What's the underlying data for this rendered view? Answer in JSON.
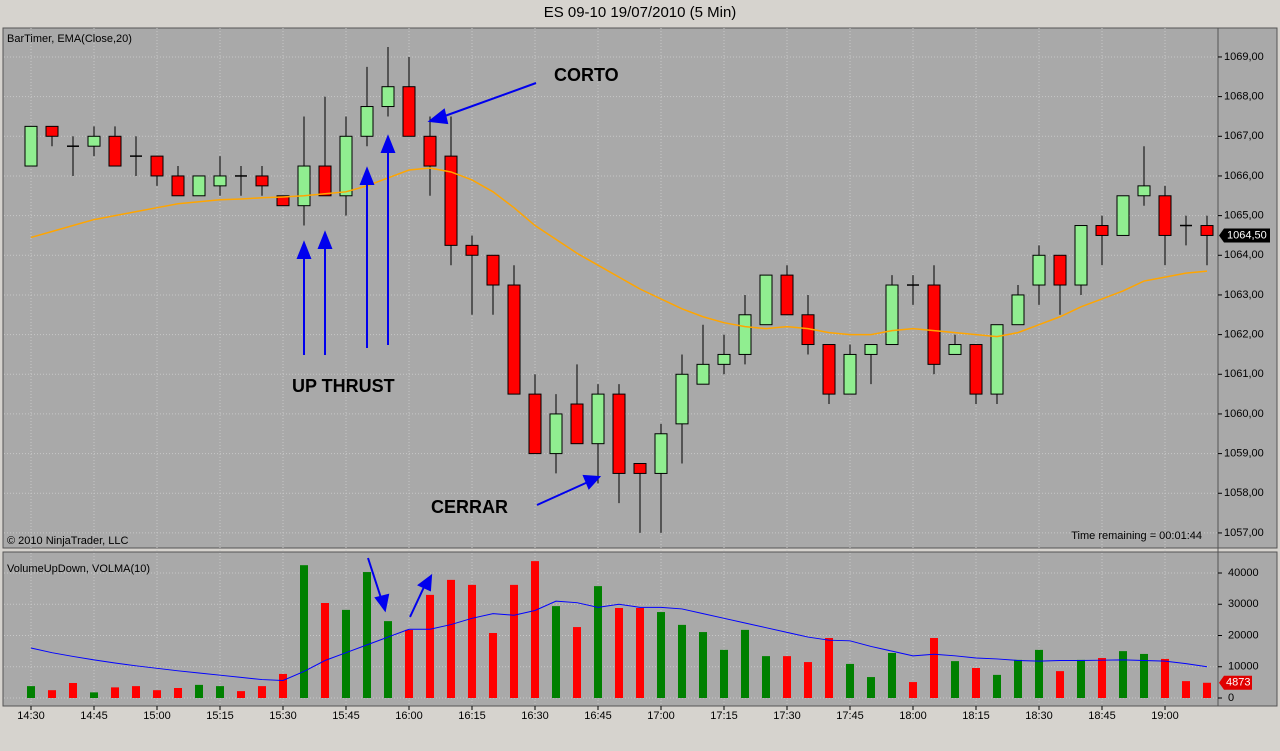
{
  "chart_data": [
    {
      "type": "candlestick",
      "title": "ES 09-10  19/07/2010 (5 Min)",
      "subtitle": "BarTimer, EMA(Close,20)",
      "footnote": "© 2010 NinjaTrader, LLC",
      "time_remaining": "Time remaining = 00:01:44",
      "up_color": "#90ee90",
      "down_color": "#ff0000",
      "open": [
        1066.25,
        1067.25,
        1066.75,
        1066.75,
        1067.0,
        1066.5,
        1066.5,
        1066.0,
        1065.5,
        1065.75,
        1066.0,
        1066.0,
        1065.5,
        1065.25,
        1066.25,
        1065.5,
        1067.0,
        1067.75,
        1068.25,
        1067.0,
        1066.5,
        1064.25,
        1064.0,
        1063.25,
        1060.5,
        1059.0,
        1060.25,
        1059.25,
        1060.5,
        1058.75,
        1058.5,
        1059.75,
        1060.75,
        1061.25,
        1061.5,
        1062.25,
        1063.5,
        1062.5,
        1061.75,
        1060.5,
        1061.5,
        1061.75,
        1063.25,
        1063.25,
        1061.5,
        1061.75,
        1060.5,
        1062.25,
        1063.25,
        1064.0,
        1063.25,
        1064.75,
        1064.5,
        1065.5,
        1065.5,
        1064.75,
        1064.75
      ],
      "high": [
        1067.25,
        1067.25,
        1067.0,
        1067.25,
        1067.25,
        1067.0,
        1066.5,
        1066.25,
        1066.0,
        1066.5,
        1066.25,
        1066.25,
        1065.5,
        1067.5,
        1068.0,
        1067.5,
        1068.75,
        1069.25,
        1069.0,
        1067.5,
        1067.5,
        1064.5,
        1064.0,
        1063.75,
        1061.0,
        1060.5,
        1061.25,
        1060.75,
        1060.75,
        1058.75,
        1059.75,
        1061.5,
        1062.25,
        1062.0,
        1063.0,
        1063.5,
        1063.75,
        1063.0,
        1061.75,
        1061.75,
        1061.75,
        1063.5,
        1063.5,
        1063.75,
        1062.0,
        1061.75,
        1062.25,
        1063.25,
        1064.25,
        1064.0,
        1064.75,
        1065.0,
        1065.5,
        1066.75,
        1065.75,
        1065.0,
        1065.0
      ],
      "low": [
        1066.25,
        1066.75,
        1066.0,
        1066.5,
        1066.25,
        1066.0,
        1065.75,
        1065.5,
        1065.5,
        1065.5,
        1065.5,
        1065.5,
        1065.25,
        1064.75,
        1065.5,
        1065.0,
        1066.75,
        1067.5,
        1067.0,
        1065.5,
        1063.75,
        1062.5,
        1062.5,
        1060.5,
        1059.0,
        1058.5,
        1059.25,
        1058.25,
        1057.75,
        1057.0,
        1057.0,
        1058.75,
        1060.75,
        1061.0,
        1061.25,
        1062.25,
        1062.5,
        1061.5,
        1060.25,
        1060.5,
        1060.75,
        1061.75,
        1062.75,
        1061.0,
        1061.5,
        1060.25,
        1060.25,
        1062.25,
        1062.75,
        1062.5,
        1063.0,
        1063.75,
        1064.5,
        1065.25,
        1063.75,
        1064.25,
        1063.75
      ],
      "close": [
        1067.25,
        1067.0,
        1066.75,
        1067.0,
        1066.25,
        1066.5,
        1066.0,
        1065.5,
        1066.0,
        1066.0,
        1066.0,
        1065.75,
        1065.25,
        1066.25,
        1065.5,
        1067.0,
        1067.75,
        1068.25,
        1067.0,
        1066.25,
        1064.25,
        1064.0,
        1063.25,
        1060.5,
        1059.0,
        1060.0,
        1059.25,
        1060.5,
        1058.5,
        1058.5,
        1059.5,
        1061.0,
        1061.25,
        1061.5,
        1062.5,
        1063.5,
        1062.5,
        1061.75,
        1060.5,
        1061.5,
        1061.75,
        1063.25,
        1063.25,
        1061.25,
        1061.75,
        1060.5,
        1062.25,
        1063.0,
        1064.0,
        1063.25,
        1064.75,
        1064.5,
        1065.5,
        1065.75,
        1064.5,
        1064.75,
        1064.5
      ],
      "ema": {
        "color": "#ffa500",
        "values": [
          1064.45,
          1064.6,
          1064.75,
          1064.9,
          1065.0,
          1065.1,
          1065.2,
          1065.3,
          1065.35,
          1065.4,
          1065.42,
          1065.45,
          1065.47,
          1065.5,
          1065.55,
          1065.6,
          1065.75,
          1065.95,
          1066.15,
          1066.2,
          1066.1,
          1065.9,
          1065.6,
          1065.2,
          1064.75,
          1064.4,
          1064.05,
          1063.75,
          1063.45,
          1063.15,
          1062.9,
          1062.65,
          1062.45,
          1062.3,
          1062.2,
          1062.15,
          1062.2,
          1062.15,
          1062.05,
          1062.0,
          1062.0,
          1062.1,
          1062.15,
          1062.1,
          1062.05,
          1062.0,
          1061.95,
          1062.05,
          1062.25,
          1062.45,
          1062.7,
          1062.9,
          1063.1,
          1063.35,
          1063.45,
          1063.55,
          1063.6
        ]
      },
      "last_price": {
        "value": 1064.5,
        "label": "1064,50"
      },
      "ylim": [
        1056.62,
        1069.73
      ],
      "yticks": [
        {
          "value": 1057,
          "label": "1057,00"
        },
        {
          "value": 1058,
          "label": "1058,00"
        },
        {
          "value": 1059,
          "label": "1059,00"
        },
        {
          "value": 1060,
          "label": "1060,00"
        },
        {
          "value": 1061,
          "label": "1061,00"
        },
        {
          "value": 1062,
          "label": "1062,00"
        },
        {
          "value": 1063,
          "label": "1063,00"
        },
        {
          "value": 1064,
          "label": "1064,00"
        },
        {
          "value": 1065,
          "label": "1065,00"
        },
        {
          "value": 1066,
          "label": "1066,00"
        },
        {
          "value": 1067,
          "label": "1067,00"
        },
        {
          "value": 1068,
          "label": "1068,00"
        },
        {
          "value": 1069,
          "label": "1069,00"
        }
      ],
      "annotations": [
        {
          "text": "CORTO"
        },
        {
          "text": "UP THRUST"
        },
        {
          "text": "CERRAR"
        }
      ],
      "grid": true
    },
    {
      "type": "bar",
      "subtitle": "VolumeUpDown, VOLMA(10)",
      "categories": [
        "14:30",
        null,
        null,
        "14:45",
        null,
        null,
        "15:00",
        null,
        null,
        "15:15",
        null,
        null,
        "15:30",
        null,
        null,
        "15:45",
        null,
        null,
        "16:00",
        null,
        null,
        "16:15",
        null,
        null,
        "16:30",
        null,
        null,
        "16:45",
        null,
        null,
        "17:00",
        null,
        null,
        "17:15",
        null,
        null,
        "17:30",
        null,
        null,
        "17:45",
        null,
        null,
        "18:00",
        null,
        null,
        "18:15",
        null,
        null,
        "18:30",
        null,
        null,
        "18:45",
        null,
        null,
        "19:00",
        null,
        null
      ],
      "values": [
        3800,
        2500,
        4800,
        1800,
        3400,
        3800,
        2500,
        3200,
        4200,
        3800,
        2200,
        3800,
        7700,
        42500,
        30400,
        28200,
        40300,
        24600,
        21800,
        33000,
        37800,
        36200,
        20800,
        36200,
        43800,
        29400,
        22700,
        35800,
        28800,
        28800,
        27500,
        23400,
        21100,
        15400,
        21800,
        13400,
        13400,
        11500,
        19200,
        10900,
        6700,
        14400,
        5100,
        19200,
        11800,
        9600,
        7400,
        12200,
        15400,
        8600,
        12200,
        12800,
        15000,
        14100,
        12500,
        5400,
        4873
      ],
      "colors": [
        "#008000",
        "#ff0000",
        "#ff0000",
        "#008000",
        "#ff0000",
        "#ff0000",
        "#ff0000",
        "#ff0000",
        "#008000",
        "#008000",
        "#ff0000",
        "#ff0000",
        "#ff0000",
        "#008000",
        "#ff0000",
        "#008000",
        "#008000",
        "#008000",
        "#ff0000",
        "#ff0000",
        "#ff0000",
        "#ff0000",
        "#ff0000",
        "#ff0000",
        "#ff0000",
        "#008000",
        "#ff0000",
        "#008000",
        "#ff0000",
        "#ff0000",
        "#008000",
        "#008000",
        "#008000",
        "#008000",
        "#008000",
        "#008000",
        "#ff0000",
        "#ff0000",
        "#ff0000",
        "#008000",
        "#008000",
        "#008000",
        "#ff0000",
        "#ff0000",
        "#008000",
        "#ff0000",
        "#008000",
        "#008000",
        "#008000",
        "#ff0000",
        "#008000",
        "#ff0000",
        "#008000",
        "#008000",
        "#ff0000",
        "#ff0000",
        "#ff0000"
      ],
      "volma": {
        "color": "#0000ff",
        "values": [
          16000,
          14500,
          13300,
          12200,
          11200,
          10300,
          9500,
          8700,
          8000,
          7300,
          6600,
          5900,
          5600,
          8500,
          12000,
          14500,
          17000,
          19500,
          22000,
          22000,
          23500,
          25500,
          27000,
          26500,
          28000,
          31000,
          30500,
          29000,
          30000,
          29000,
          29000,
          28500,
          27000,
          25500,
          24000,
          22500,
          21000,
          19500,
          18500,
          18300,
          16500,
          15000,
          13500,
          14000,
          13500,
          12800,
          12500,
          12000,
          11800,
          12000,
          12000,
          12100,
          12200,
          12000,
          11800,
          11000,
          10000
        ]
      },
      "ylim": [
        -2560,
        46720
      ],
      "yticks": [
        0,
        10000,
        20000,
        30000,
        40000
      ],
      "grid": true
    }
  ]
}
